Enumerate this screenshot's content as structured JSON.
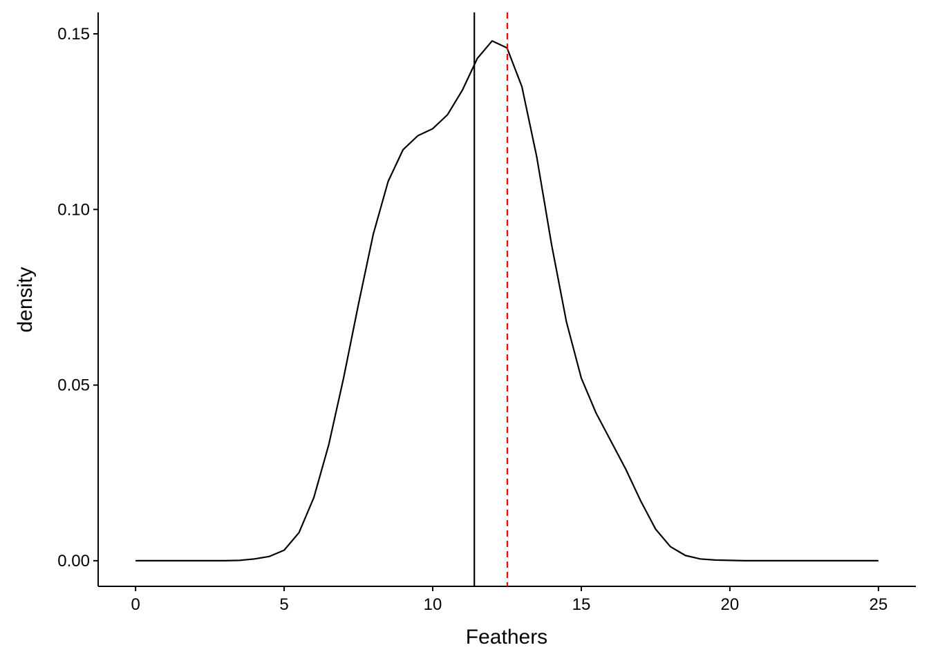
{
  "chart_data": {
    "type": "line",
    "xlabel": "Feathers",
    "ylabel": "density",
    "x": [
      0,
      0.5,
      1,
      1.5,
      2,
      2.5,
      3,
      3.5,
      4,
      4.5,
      5,
      5.5,
      6,
      6.5,
      7,
      7.5,
      8,
      8.5,
      9,
      9.5,
      10,
      10.5,
      11,
      11.5,
      12,
      12.5,
      13,
      13.5,
      14,
      14.5,
      15,
      15.5,
      16,
      16.5,
      17,
      17.5,
      18,
      18.5,
      19,
      19.5,
      20,
      20.5,
      21,
      21.5,
      22,
      22.5,
      23,
      23.5,
      24,
      24.5,
      25
    ],
    "series": [
      {
        "color": "#000000",
        "values": [
          0,
          0,
          0,
          0,
          0,
          0,
          0,
          0.0001,
          0.0005,
          0.0012,
          0.003,
          0.008,
          0.018,
          0.033,
          0.052,
          0.073,
          0.093,
          0.108,
          0.117,
          0.121,
          0.123,
          0.127,
          0.134,
          0.143,
          0.148,
          0.146,
          0.135,
          0.115,
          0.09,
          0.068,
          0.052,
          0.042,
          0.034,
          0.026,
          0.017,
          0.009,
          0.004,
          0.0015,
          0.0005,
          0.0002,
          0.0001,
          0,
          0,
          0,
          0,
          0,
          0,
          0,
          0,
          0,
          0
        ]
      }
    ],
    "vlines": [
      {
        "x": 11.4,
        "color": "#000000",
        "dash": false
      },
      {
        "x": 12.51,
        "color": "#ff0000",
        "dash": true
      }
    ],
    "xlim": [
      -1.26,
      26.26
    ],
    "ylim": [
      -0.0073,
      0.1561
    ],
    "xticks": [
      0,
      5,
      10,
      15,
      20,
      25
    ],
    "yticks": [
      {
        "value": 0,
        "label": "0.00"
      },
      0.05,
      {
        "value": 0.1,
        "label": "0.10"
      },
      0.15
    ]
  }
}
